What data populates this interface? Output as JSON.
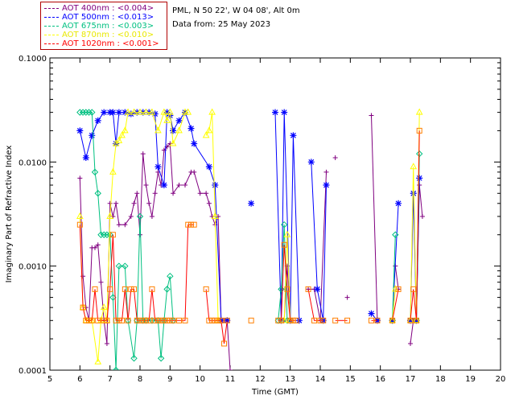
{
  "header": {
    "location": "PML, N 50 22', W 04 08', Alt 0m",
    "date": "Data from: 25 May 2023"
  },
  "colors": {
    "aot400": "#800080",
    "aot500": "#0000ff",
    "aot675": "#00c080",
    "aot870": "#ffff00",
    "aot1020": "#ff0000",
    "marker1020": "#ff8000"
  },
  "chart_data": {
    "type": "scatter",
    "title": "",
    "xlabel": "Time (GMT)",
    "ylabel": "Imaginary Part of Refractive Index",
    "xlim": [
      5,
      20
    ],
    "ylim": [
      0.0001,
      0.1
    ],
    "yscale": "log",
    "xticks": [
      "5",
      "6",
      "7",
      "8",
      "9",
      "10",
      "11",
      "12",
      "13",
      "14",
      "15",
      "16",
      "17",
      "18",
      "19",
      "20"
    ],
    "yticks": [
      "0.0001",
      "0.0010",
      "0.0100",
      "0.1000"
    ],
    "legend_position": "top-left-outside",
    "series": [
      {
        "name": "AOT 400nm : <0.004>",
        "key": "aot400",
        "marker": "plus",
        "segments": [
          [
            [
              6.0,
              0.007
            ],
            [
              6.1,
              0.0008
            ],
            [
              6.2,
              0.0004
            ],
            [
              6.3,
              0.0003
            ],
            [
              6.4,
              0.0015
            ],
            [
              6.5,
              0.0015
            ],
            [
              6.6,
              0.0016
            ],
            [
              6.7,
              0.0007
            ],
            [
              6.8,
              0.0003
            ],
            [
              6.9,
              0.00018
            ],
            [
              7.0,
              0.004
            ],
            [
              7.1,
              0.003
            ],
            [
              7.2,
              0.004
            ],
            [
              7.3,
              0.0025
            ],
            [
              7.5,
              0.0025
            ],
            [
              7.7,
              0.003
            ],
            [
              7.8,
              0.004
            ],
            [
              7.9,
              0.005
            ],
            [
              8.0,
              0.002
            ],
            [
              8.1,
              0.012
            ],
            [
              8.2,
              0.006
            ],
            [
              8.3,
              0.004
            ],
            [
              8.4,
              0.003
            ],
            [
              8.5,
              0.005
            ],
            [
              8.6,
              0.008
            ],
            [
              8.7,
              0.006
            ],
            [
              8.8,
              0.013
            ],
            [
              8.9,
              0.014
            ],
            [
              9.0,
              0.015
            ],
            [
              9.1,
              0.005
            ],
            [
              9.3,
              0.006
            ],
            [
              9.5,
              0.006
            ],
            [
              9.7,
              0.008
            ],
            [
              9.8,
              0.008
            ],
            [
              10.0,
              0.005
            ],
            [
              10.2,
              0.005
            ],
            [
              10.3,
              0.004
            ],
            [
              10.4,
              0.003
            ],
            [
              10.5,
              0.0025
            ],
            [
              10.6,
              0.003
            ],
            [
              10.7,
              0.0003
            ],
            [
              10.8,
              0.0003
            ],
            [
              10.9,
              0.0003
            ],
            [
              11.0,
              0.0001
            ]
          ],
          [
            [
              12.8,
              0.0003
            ],
            [
              12.9,
              0.001
            ],
            [
              13.0,
              0.0003
            ]
          ],
          [
            [
              13.6,
              0.0006
            ],
            [
              13.8,
              0.0006
            ],
            [
              14.0,
              0.0003
            ],
            [
              14.2,
              0.008
            ]
          ],
          [
            [
              14.5,
              0.011
            ]
          ],
          [
            [
              14.9,
              0.0005
            ]
          ],
          [
            [
              15.7,
              0.028
            ],
            [
              15.9,
              0.0003
            ]
          ],
          [
            [
              16.5,
              0.001
            ],
            [
              16.6,
              0.0006
            ]
          ],
          [
            [
              17.0,
              0.00018
            ],
            [
              17.1,
              0.0003
            ],
            [
              17.2,
              0.0003
            ],
            [
              17.3,
              0.006
            ],
            [
              17.4,
              0.003
            ]
          ]
        ]
      },
      {
        "name": "AOT 500nm : <0.013>",
        "key": "aot500",
        "marker": "star",
        "segments": [
          [
            [
              6.0,
              0.02
            ],
            [
              6.2,
              0.011
            ],
            [
              6.4,
              0.018
            ],
            [
              6.6,
              0.025
            ],
            [
              6.8,
              0.03
            ],
            [
              7.0,
              0.03
            ],
            [
              7.1,
              0.03
            ],
            [
              7.2,
              0.015
            ],
            [
              7.3,
              0.03
            ],
            [
              7.5,
              0.03
            ],
            [
              7.7,
              0.029
            ],
            [
              7.9,
              0.03
            ],
            [
              8.1,
              0.03
            ],
            [
              8.3,
              0.03
            ],
            [
              8.5,
              0.029
            ],
            [
              8.6,
              0.009
            ],
            [
              8.8,
              0.006
            ],
            [
              8.9,
              0.03
            ],
            [
              9.0,
              0.028
            ],
            [
              9.1,
              0.02
            ],
            [
              9.3,
              0.025
            ],
            [
              9.5,
              0.03
            ],
            [
              9.7,
              0.021
            ],
            [
              9.8,
              0.015
            ],
            [
              10.3,
              0.009
            ],
            [
              10.5,
              0.006
            ],
            [
              10.7,
              0.0003
            ],
            [
              10.9,
              0.0003
            ]
          ],
          [
            [
              11.7,
              0.004
            ]
          ],
          [
            [
              12.5,
              0.03
            ],
            [
              12.7,
              0.0003
            ],
            [
              12.8,
              0.03
            ],
            [
              13.0,
              0.0003
            ],
            [
              13.1,
              0.018
            ],
            [
              13.3,
              0.0003
            ]
          ],
          [
            [
              13.7,
              0.01
            ],
            [
              13.9,
              0.0006
            ],
            [
              14.1,
              0.0003
            ],
            [
              14.2,
              0.006
            ]
          ],
          [
            [
              15.7,
              0.00035
            ],
            [
              15.9,
              0.0003
            ]
          ],
          [
            [
              16.4,
              0.0003
            ],
            [
              16.6,
              0.004
            ]
          ],
          [
            [
              17.0,
              0.0003
            ],
            [
              17.1,
              0.005
            ],
            [
              17.2,
              0.0003
            ],
            [
              17.3,
              0.007
            ]
          ]
        ]
      },
      {
        "name": "AOT 675nm : <0.003>",
        "key": "aot675",
        "marker": "diamond",
        "segments": [
          [
            [
              6.0,
              0.03
            ],
            [
              6.1,
              0.03
            ],
            [
              6.2,
              0.03
            ],
            [
              6.3,
              0.03
            ],
            [
              6.4,
              0.03
            ],
            [
              6.5,
              0.008
            ],
            [
              6.6,
              0.005
            ],
            [
              6.7,
              0.002
            ],
            [
              6.8,
              0.002
            ],
            [
              6.9,
              0.002
            ],
            [
              7.0,
              0.002
            ],
            [
              7.1,
              0.0005
            ],
            [
              7.2,
              0.0001
            ],
            [
              7.3,
              0.001
            ],
            [
              7.5,
              0.001
            ],
            [
              7.6,
              0.0003
            ],
            [
              7.8,
              0.00013
            ],
            [
              7.9,
              0.0003
            ],
            [
              8.0,
              0.003
            ],
            [
              8.1,
              0.0003
            ],
            [
              8.2,
              0.0003
            ],
            [
              8.4,
              0.0003
            ],
            [
              8.6,
              0.0003
            ],
            [
              8.7,
              0.00013
            ],
            [
              8.8,
              0.0003
            ],
            [
              8.9,
              0.0006
            ],
            [
              9.0,
              0.0008
            ],
            [
              9.1,
              0.0003
            ]
          ],
          [
            [
              12.6,
              0.0003
            ],
            [
              12.7,
              0.0006
            ],
            [
              12.8,
              0.0025
            ],
            [
              12.9,
              0.0003
            ]
          ],
          [
            [
              16.4,
              0.0003
            ],
            [
              16.5,
              0.002
            ]
          ],
          [
            [
              17.2,
              0.0003
            ],
            [
              17.3,
              0.012
            ]
          ]
        ]
      },
      {
        "name": "AOT 870nm : <0.010>",
        "key": "aot870",
        "marker": "triangle",
        "segments": [
          [
            [
              6.0,
              0.003
            ],
            [
              6.1,
              0.0004
            ],
            [
              6.2,
              0.0003
            ],
            [
              6.4,
              0.0003
            ],
            [
              6.6,
              0.00012
            ],
            [
              6.7,
              0.0003
            ],
            [
              6.8,
              0.0004
            ],
            [
              6.9,
              0.0003
            ],
            [
              7.0,
              0.003
            ],
            [
              7.1,
              0.008
            ],
            [
              7.2,
              0.015
            ],
            [
              7.3,
              0.016
            ],
            [
              7.4,
              0.018
            ],
            [
              7.5,
              0.02
            ],
            [
              7.6,
              0.03
            ],
            [
              7.8,
              0.03
            ],
            [
              8.0,
              0.03
            ],
            [
              8.2,
              0.03
            ],
            [
              8.4,
              0.03
            ],
            [
              8.6,
              0.02
            ],
            [
              8.8,
              0.03
            ],
            [
              8.9,
              0.025
            ],
            [
              9.0,
              0.03
            ],
            [
              9.1,
              0.015
            ],
            [
              9.3,
              0.02
            ],
            [
              9.5,
              0.03
            ],
            [
              9.6,
              0.03
            ]
          ],
          [
            [
              10.2,
              0.018
            ],
            [
              10.3,
              0.02
            ],
            [
              10.4,
              0.03
            ],
            [
              10.5,
              0.003
            ],
            [
              10.6,
              0.0003
            ]
          ],
          [
            [
              12.8,
              0.0003
            ],
            [
              12.9,
              0.002
            ],
            [
              13.0,
              0.0003
            ]
          ],
          [
            [
              16.4,
              0.0003
            ],
            [
              16.5,
              0.0006
            ]
          ],
          [
            [
              17.0,
              0.0003
            ],
            [
              17.1,
              0.009
            ],
            [
              17.2,
              0.0003
            ],
            [
              17.3,
              0.03
            ]
          ]
        ]
      },
      {
        "name": "AOT 1020nm : <0.001>",
        "key": "aot1020",
        "marker": "square",
        "segments": [
          [
            [
              6.0,
              0.0025
            ],
            [
              6.1,
              0.0004
            ],
            [
              6.2,
              0.0003
            ],
            [
              6.3,
              0.0003
            ],
            [
              6.4,
              0.0003
            ],
            [
              6.5,
              0.0006
            ],
            [
              6.6,
              0.0003
            ],
            [
              6.8,
              0.0003
            ],
            [
              6.9,
              0.0003
            ],
            [
              7.0,
              0.0006
            ],
            [
              7.1,
              0.002
            ],
            [
              7.2,
              0.0003
            ],
            [
              7.3,
              0.0003
            ],
            [
              7.4,
              0.0003
            ],
            [
              7.5,
              0.0006
            ],
            [
              7.6,
              0.0003
            ],
            [
              7.7,
              0.0006
            ],
            [
              7.8,
              0.0006
            ],
            [
              7.9,
              0.0003
            ],
            [
              8.0,
              0.0003
            ],
            [
              8.1,
              0.0003
            ],
            [
              8.2,
              0.0003
            ],
            [
              8.3,
              0.0003
            ],
            [
              8.4,
              0.0006
            ],
            [
              8.5,
              0.0003
            ],
            [
              8.6,
              0.0003
            ],
            [
              8.7,
              0.0003
            ],
            [
              8.8,
              0.0003
            ],
            [
              8.9,
              0.0003
            ],
            [
              9.0,
              0.0003
            ],
            [
              9.1,
              0.0003
            ],
            [
              9.3,
              0.0003
            ],
            [
              9.5,
              0.0003
            ],
            [
              9.6,
              0.0025
            ],
            [
              9.7,
              0.0025
            ],
            [
              9.8,
              0.0025
            ]
          ],
          [
            [
              10.2,
              0.0006
            ],
            [
              10.3,
              0.0003
            ],
            [
              10.4,
              0.0003
            ],
            [
              10.5,
              0.0003
            ],
            [
              10.6,
              0.0003
            ],
            [
              10.7,
              0.0003
            ],
            [
              10.8,
              0.00018
            ],
            [
              10.9,
              0.0003
            ]
          ],
          [
            [
              11.7,
              0.0003
            ]
          ],
          [
            [
              12.6,
              0.0003
            ],
            [
              12.7,
              0.0003
            ],
            [
              12.8,
              0.0016
            ],
            [
              12.9,
              0.0006
            ],
            [
              13.0,
              0.0003
            ],
            [
              13.1,
              0.0003
            ],
            [
              13.2,
              0.0003
            ]
          ],
          [
            [
              13.6,
              0.0006
            ],
            [
              13.8,
              0.0003
            ],
            [
              14.0,
              0.0003
            ],
            [
              14.1,
              0.0003
            ]
          ],
          [
            [
              14.5,
              0.0003
            ],
            [
              14.9,
              0.0003
            ]
          ],
          [
            [
              15.7,
              0.0003
            ],
            [
              15.9,
              0.0003
            ]
          ],
          [
            [
              16.4,
              0.0003
            ],
            [
              16.6,
              0.0006
            ]
          ],
          [
            [
              17.0,
              0.0003
            ],
            [
              17.1,
              0.0006
            ],
            [
              17.2,
              0.0003
            ],
            [
              17.3,
              0.02
            ]
          ]
        ]
      }
    ]
  }
}
